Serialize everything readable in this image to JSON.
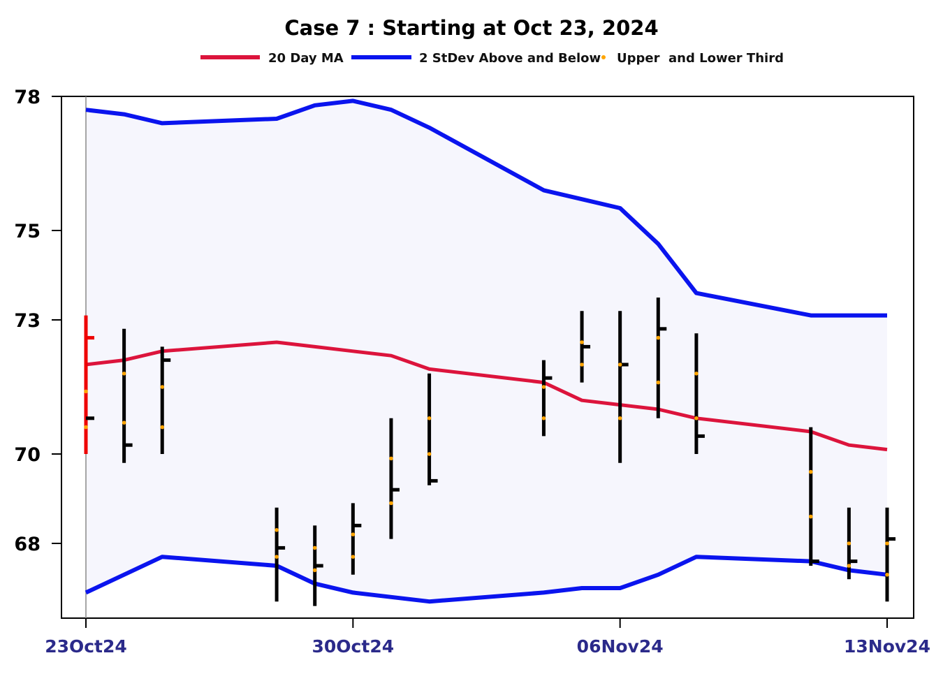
{
  "chart_data": {
    "type": "line",
    "title": "Case 7 :  Starting at Oct 23, 2024",
    "xlabel": "",
    "ylabel": "",
    "x_tick_labels": [
      "23Oct24",
      "30Oct24",
      "06Nov24",
      "13Nov24"
    ],
    "x_tick_dates": [
      "2024-10-23",
      "2024-10-30",
      "2024-11-06",
      "2024-11-13"
    ],
    "y_ticks": [
      68,
      70,
      73,
      75,
      78
    ],
    "ylim": [
      66.7,
      78
    ],
    "legend_position": "top",
    "colors": {
      "ma": "#dc143c",
      "band": "#0a14ee",
      "third": "#ffa500",
      "bar": "#000000",
      "first_bar": "#ee0000",
      "band_fill": "#f6f6fd"
    },
    "legend": [
      {
        "key": "ma",
        "label": "20 Day MA"
      },
      {
        "key": "band",
        "label": "2 StDev Above and Below"
      },
      {
        "key": "third",
        "label": "Upper  and Lower Third"
      }
    ],
    "series": [
      {
        "name": "20 Day MA",
        "values": [
          [
            "2024-10-23",
            72.0
          ],
          [
            "2024-10-24",
            72.1
          ],
          [
            "2024-10-25",
            72.3
          ],
          [
            "2024-10-28",
            72.5
          ],
          [
            "2024-10-29",
            72.4
          ],
          [
            "2024-10-30",
            72.3
          ],
          [
            "2024-10-31",
            72.2
          ],
          [
            "2024-11-01",
            71.9
          ],
          [
            "2024-11-04",
            71.6
          ],
          [
            "2024-11-05",
            71.2
          ],
          [
            "2024-11-06",
            71.1
          ],
          [
            "2024-11-07",
            71.0
          ],
          [
            "2024-11-08",
            70.8
          ],
          [
            "2024-11-11",
            70.5
          ],
          [
            "2024-11-12",
            70.2
          ],
          [
            "2024-11-13",
            70.1
          ]
        ]
      },
      {
        "name": "2 StDev Above and Below",
        "upper": [
          [
            "2024-10-23",
            77.7
          ],
          [
            "2024-10-24",
            77.6
          ],
          [
            "2024-10-25",
            77.4
          ],
          [
            "2024-10-28",
            77.5
          ],
          [
            "2024-10-29",
            77.8
          ],
          [
            "2024-10-30",
            77.9
          ],
          [
            "2024-10-31",
            77.7
          ],
          [
            "2024-11-01",
            77.3
          ],
          [
            "2024-11-04",
            75.9
          ],
          [
            "2024-11-05",
            75.7
          ],
          [
            "2024-11-06",
            75.5
          ],
          [
            "2024-11-07",
            74.7
          ],
          [
            "2024-11-08",
            73.6
          ],
          [
            "2024-11-11",
            73.1
          ],
          [
            "2024-11-12",
            73.1
          ],
          [
            "2024-11-13",
            73.1
          ]
        ],
        "lower": [
          [
            "2024-10-23",
            66.9
          ],
          [
            "2024-10-24",
            67.3
          ],
          [
            "2024-10-25",
            67.7
          ],
          [
            "2024-10-28",
            67.5
          ],
          [
            "2024-10-29",
            67.1
          ],
          [
            "2024-10-30",
            66.9
          ],
          [
            "2024-10-31",
            66.8
          ],
          [
            "2024-11-01",
            66.7
          ],
          [
            "2024-11-04",
            66.9
          ],
          [
            "2024-11-05",
            67.0
          ],
          [
            "2024-11-06",
            67.0
          ],
          [
            "2024-11-07",
            67.3
          ],
          [
            "2024-11-08",
            67.7
          ],
          [
            "2024-11-11",
            67.6
          ],
          [
            "2024-11-12",
            67.4
          ],
          [
            "2024-11-13",
            67.3
          ]
        ]
      }
    ],
    "price_bars": [
      {
        "date": "2024-10-23",
        "high": 73.1,
        "low": 70.0,
        "open": 72.6,
        "close": 70.8,
        "upper_third": 71.4,
        "lower_third": 70.6
      },
      {
        "date": "2024-10-24",
        "high": 72.8,
        "low": 69.8,
        "close": 70.2,
        "upper_third": 71.8,
        "lower_third": 70.7
      },
      {
        "date": "2024-10-25",
        "high": 72.4,
        "low": 70.0,
        "close": 72.1,
        "upper_third": 71.5,
        "lower_third": 70.6
      },
      {
        "date": "2024-10-28",
        "high": 68.8,
        "low": 66.7,
        "close": 67.9,
        "upper_third": 68.3,
        "lower_third": 67.7
      },
      {
        "date": "2024-10-29",
        "high": 68.4,
        "low": 66.6,
        "close": 67.5,
        "upper_third": 67.9,
        "lower_third": 67.4
      },
      {
        "date": "2024-10-30",
        "high": 68.9,
        "low": 67.3,
        "close": 68.4,
        "upper_third": 68.2,
        "lower_third": 67.7
      },
      {
        "date": "2024-10-31",
        "high": 70.8,
        "low": 68.1,
        "close": 69.2,
        "upper_third": 69.9,
        "lower_third": 68.9
      },
      {
        "date": "2024-11-01",
        "high": 71.8,
        "low": 69.3,
        "close": 69.4,
        "upper_third": 70.8,
        "lower_third": 70.0
      },
      {
        "date": "2024-11-04",
        "high": 72.1,
        "low": 70.4,
        "close": 71.7,
        "upper_third": 71.5,
        "lower_third": 70.8
      },
      {
        "date": "2024-11-05",
        "high": 73.2,
        "low": 71.6,
        "close": 72.4,
        "upper_third": 72.5,
        "lower_third": 72.0
      },
      {
        "date": "2024-11-06",
        "high": 73.2,
        "low": 69.8,
        "close": 72.0,
        "upper_third": 72.0,
        "lower_third": 70.8
      },
      {
        "date": "2024-11-07",
        "high": 73.5,
        "low": 70.8,
        "close": 72.8,
        "upper_third": 72.6,
        "lower_third": 71.6
      },
      {
        "date": "2024-11-08",
        "high": 72.7,
        "low": 70.0,
        "close": 70.4,
        "upper_third": 71.8,
        "lower_third": 70.8
      },
      {
        "date": "2024-11-11",
        "high": 70.6,
        "low": 67.5,
        "close": 67.6,
        "upper_third": 69.6,
        "lower_third": 68.6
      },
      {
        "date": "2024-11-12",
        "high": 68.8,
        "low": 67.2,
        "close": 67.6,
        "upper_third": 68.0,
        "lower_third": 67.5
      },
      {
        "date": "2024-11-13",
        "high": 68.8,
        "low": 66.7,
        "close": 68.1,
        "upper_third": 68.0,
        "lower_third": 67.3
      }
    ]
  }
}
